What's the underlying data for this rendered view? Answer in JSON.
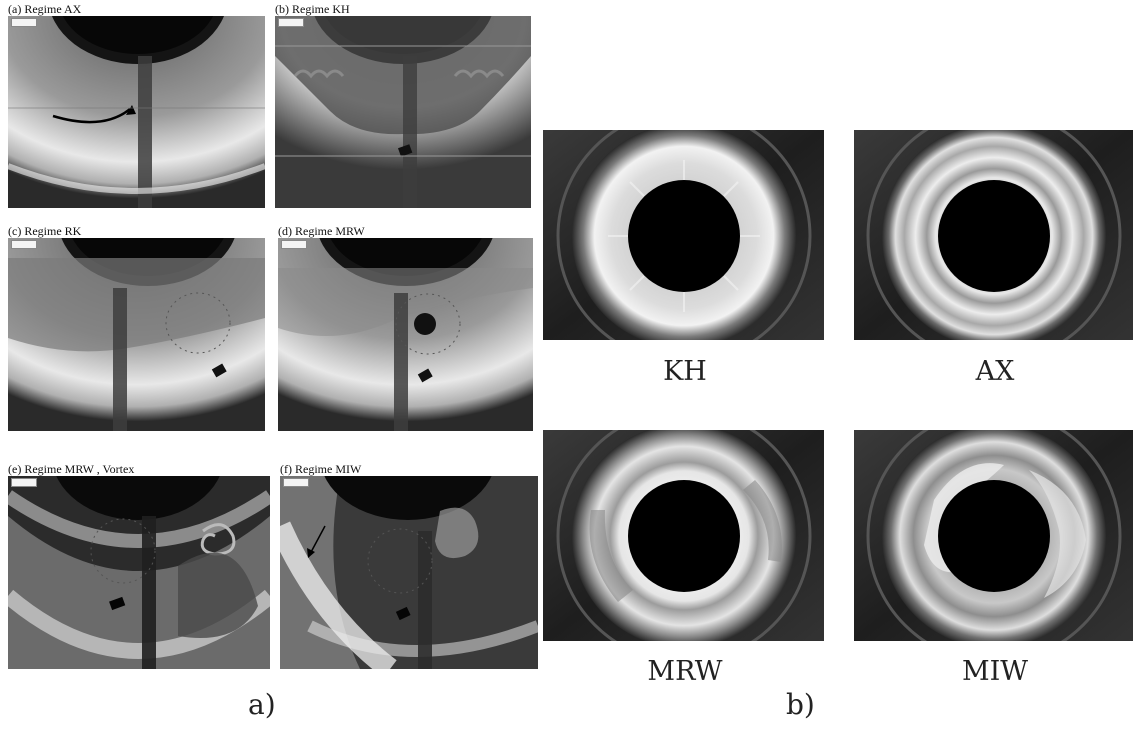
{
  "panel_a": {
    "titles": [
      "(a) Regime AX",
      "(b) Regime KH",
      "(c) Regime RK",
      "(d) Regime MRW",
      "(e) Regime MRW , Vortex",
      "(f) Regime MIW"
    ],
    "label": "a)"
  },
  "panel_b": {
    "captions": [
      "KH",
      "AX",
      "MRW",
      "MIW"
    ],
    "label": "b)"
  }
}
